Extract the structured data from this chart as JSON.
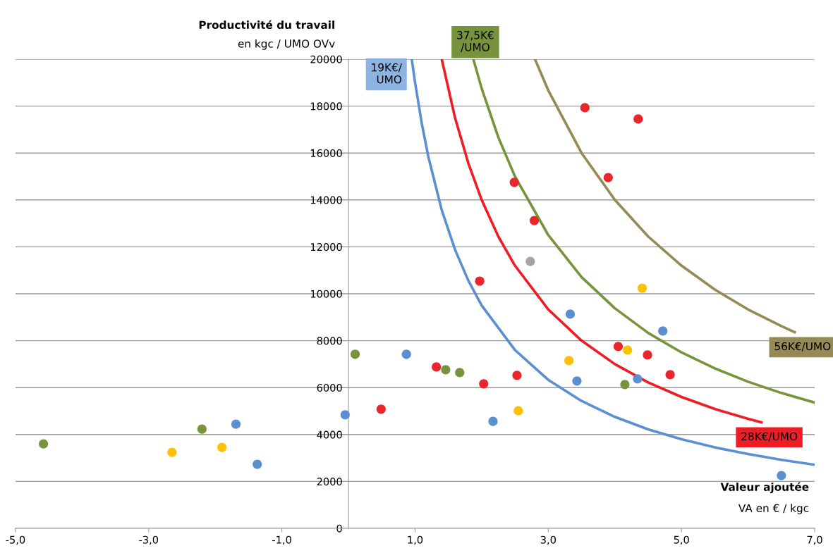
{
  "chart_data": {
    "type": "scatter",
    "xlabel": "Valeur ajoutée",
    "ylabel": "Productivité du travail",
    "annotations": [
      "en kgc / UMO OVv",
      "VA en € / kgc"
    ],
    "xlim": [
      -5,
      7
    ],
    "ylim": [
      0,
      20000
    ],
    "xticks": [
      {
        "value": -5,
        "label": "-5,0"
      },
      {
        "value": -3,
        "label": "-3,0"
      },
      {
        "value": -1,
        "label": "-1,0"
      },
      {
        "value": 1,
        "label": "1,0"
      },
      {
        "value": 3,
        "label": "3,0"
      },
      {
        "value": 5,
        "label": "5,0"
      },
      {
        "value": 7,
        "label": "7,0"
      }
    ],
    "yticks": [
      0,
      2000,
      4000,
      6000,
      8000,
      10000,
      12000,
      14000,
      16000,
      18000,
      20000
    ],
    "grid": "y",
    "legend": false,
    "marker": "circle",
    "series": [
      {
        "type": "line",
        "name": "19K€/\nUMO",
        "marker": "none",
        "color": "#5b8fd0",
        "x": [
          0.95,
          1.0,
          1.1,
          1.2,
          1.4,
          1.6,
          1.8,
          2.0,
          2.5,
          3,
          3.5,
          4,
          4.5,
          5,
          5.5,
          6,
          6.5,
          7
        ],
        "values": [
          20000,
          19000,
          17270,
          15830,
          13570,
          11880,
          10560,
          9500,
          7600,
          6330,
          5430,
          4750,
          4220,
          3800,
          3450,
          3170,
          2920,
          2710
        ]
      },
      {
        "type": "line",
        "name": "28K€/UMO",
        "marker": "none",
        "color": "#ee1c25",
        "x": [
          1.4,
          1.6,
          1.8,
          2.0,
          2.25,
          2.5,
          3,
          3.5,
          4,
          4.5,
          5,
          5.5,
          6,
          6.2
        ],
        "values": [
          20000,
          17500,
          15560,
          14000,
          12440,
          11200,
          9330,
          8000,
          7000,
          6220,
          5600,
          5090,
          4670,
          4520
        ]
      },
      {
        "type": "line",
        "name": "37,5K€\n/UMO",
        "marker": "none",
        "color": "#77933c",
        "x": [
          1.875,
          2.0,
          2.25,
          2.5,
          3,
          3.5,
          4,
          4.5,
          5,
          5.5,
          6,
          6.5,
          7
        ],
        "values": [
          20000,
          18750,
          16670,
          15000,
          12500,
          10710,
          9380,
          8330,
          7500,
          6820,
          6250,
          5770,
          5360
        ]
      },
      {
        "type": "line",
        "name": "56K€/UMO",
        "marker": "none",
        "color": "#948a54",
        "x": [
          2.8,
          3,
          3.5,
          4,
          4.5,
          5,
          5.5,
          6,
          6.5,
          6.7
        ],
        "values": [
          20000,
          18670,
          16000,
          14000,
          12440,
          11200,
          10180,
          9330,
          8620,
          8360
        ]
      },
      {
        "color": "#e8262b",
        "x": [
          3.55,
          4.35,
          3.9,
          2.49,
          2.79,
          1.97,
          4.05,
          4.49,
          4.83,
          1.32,
          2.03,
          2.53,
          0.49
        ],
        "values": [
          17930,
          17450,
          14950,
          14750,
          13120,
          10540,
          7750,
          7390,
          6550,
          6880,
          6160,
          6520,
          5080
        ]
      },
      {
        "color": "#5b8fd0",
        "x": [
          0.87,
          -0.05,
          -1.69,
          -1.37,
          2.17,
          3.33,
          3.43,
          4.34,
          4.72,
          6.5
        ],
        "values": [
          7420,
          4840,
          4440,
          2730,
          4560,
          9130,
          6280,
          6370,
          8410,
          2250
        ]
      },
      {
        "color": "#77933c",
        "x": [
          -4.58,
          -2.2,
          0.1,
          1.46,
          1.67,
          4.15
        ],
        "values": [
          3600,
          4230,
          7420,
          6760,
          6640,
          6130
        ]
      },
      {
        "color": "#ffc000",
        "x": [
          -2.65,
          -1.9,
          2.55,
          3.31,
          4.19,
          4.41
        ],
        "values": [
          3240,
          3450,
          5010,
          7150,
          7600,
          10240
        ]
      },
      {
        "color": "#a5a5a5",
        "x": [
          2.73
        ],
        "values": [
          11380
        ]
      }
    ]
  }
}
